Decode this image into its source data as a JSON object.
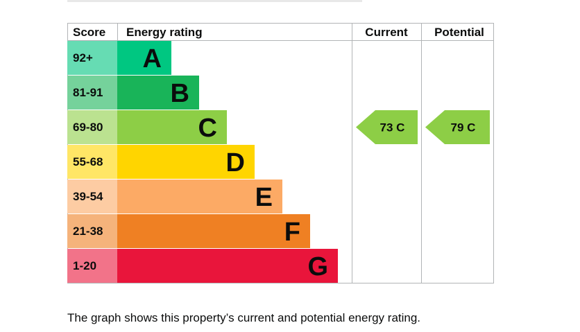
{
  "chart_data": {
    "type": "bar",
    "headers": {
      "score": "Score",
      "rating": "Energy rating",
      "current": "Current",
      "potential": "Potential"
    },
    "bands": [
      {
        "letter": "A",
        "range": "92+",
        "color": "#00c781",
        "score_color": "#66dcb3"
      },
      {
        "letter": "B",
        "range": "81-91",
        "color": "#19b459",
        "score_color": "#75d29b"
      },
      {
        "letter": "C",
        "range": "69-80",
        "color": "#8dce46",
        "score_color": "#bbe290"
      },
      {
        "letter": "D",
        "range": "55-68",
        "color": "#ffd500",
        "score_color": "#ffe666"
      },
      {
        "letter": "E",
        "range": "39-54",
        "color": "#fcaa65",
        "score_color": "#fdcca3"
      },
      {
        "letter": "F",
        "range": "21-38",
        "color": "#ef8023",
        "score_color": "#f5b37b"
      },
      {
        "letter": "G",
        "range": "1-20",
        "color": "#e9153b",
        "score_color": "#f27389"
      }
    ],
    "current": {
      "value": 73,
      "band": "C",
      "label": "73  C"
    },
    "potential": {
      "value": 79,
      "band": "C",
      "label": "79  C"
    }
  },
  "caption": "The graph shows this property’s current and potential energy rating."
}
